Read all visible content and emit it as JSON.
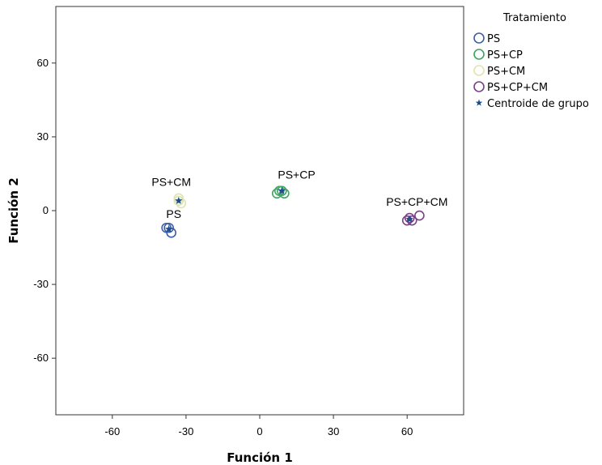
{
  "chart_data": {
    "type": "scatter",
    "title": "",
    "xlabel": "Función 1",
    "ylabel": "Función 2",
    "xlim": [
      -83,
      83
    ],
    "ylim": [
      -83,
      83
    ],
    "xticks": [
      -60,
      -30,
      0,
      30,
      60
    ],
    "yticks": [
      60,
      30,
      0,
      -30,
      -60
    ],
    "grid": false,
    "legend": {
      "title": "Tratamiento",
      "placement": "right",
      "entries": [
        {
          "label": "PS",
          "marker": "circle",
          "color": "#3f5ea8"
        },
        {
          "label": "PS+CP",
          "marker": "circle",
          "color": "#3fa560"
        },
        {
          "label": "PS+CM",
          "marker": "circle",
          "color": "#e0e3b0"
        },
        {
          "label": "PS+CP+CM",
          "marker": "circle",
          "color": "#7a3f8a"
        },
        {
          "label": "Centroide de grupo",
          "marker": "star",
          "color": "#1f4e8c"
        }
      ]
    },
    "series": [
      {
        "name": "PS",
        "color": "#3f5ea8",
        "points": [
          [
            -37,
            -7
          ],
          [
            -36,
            -9
          ],
          [
            -38,
            -7
          ]
        ],
        "centroid": [
          -37,
          -7.5
        ]
      },
      {
        "name": "PS+CP",
        "color": "#3fa560",
        "points": [
          [
            8,
            8
          ],
          [
            10,
            7
          ],
          [
            9,
            8
          ],
          [
            7,
            7
          ]
        ],
        "centroid": [
          9,
          8
        ]
      },
      {
        "name": "PS+CM",
        "color": "#e0e3b0",
        "points": [
          [
            -33,
            4
          ],
          [
            -32,
            3
          ],
          [
            -33,
            5
          ]
        ],
        "centroid": [
          -33,
          4
        ]
      },
      {
        "name": "PS+CP+CM",
        "color": "#7a3f8a",
        "points": [
          [
            60,
            -4
          ],
          [
            61,
            -3
          ],
          [
            62,
            -4
          ],
          [
            65,
            -2
          ]
        ],
        "centroid": [
          61,
          -3.5
        ]
      }
    ],
    "annotations": [
      {
        "text": "PS",
        "x": -35,
        "y": -3
      },
      {
        "text": "PS+CM",
        "x": -36,
        "y": 10
      },
      {
        "text": "PS+CP",
        "x": 15,
        "y": 13
      },
      {
        "text": "PS+CP+CM",
        "x": 64,
        "y": 2
      }
    ]
  }
}
